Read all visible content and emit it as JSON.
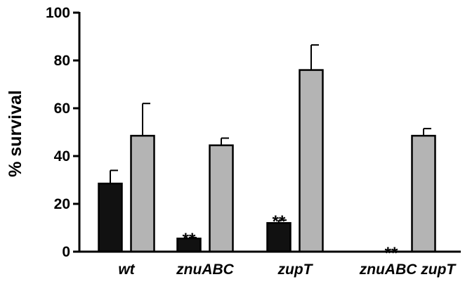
{
  "chart_data": {
    "type": "bar",
    "ylabel": "% survival",
    "ylim": [
      0,
      100
    ],
    "yticks": [
      0,
      20,
      40,
      60,
      80,
      100
    ],
    "categories": [
      "wt",
      "znuABC",
      "zupT",
      "znuABC zupT"
    ],
    "series": [
      {
        "color": "#111111",
        "values": [
          28.5,
          5.5,
          12,
          0
        ],
        "errors": [
          5.5,
          0.4,
          1.2,
          0
        ]
      },
      {
        "color": "#b4b4b4",
        "values": [
          48.5,
          44.5,
          76,
          48.5
        ],
        "errors": [
          13.5,
          3,
          10.5,
          3
        ]
      }
    ],
    "annotations": [
      {
        "category_index": 1,
        "series_index": 0,
        "text": "**"
      },
      {
        "category_index": 2,
        "series_index": 0,
        "text": "**"
      },
      {
        "category_index": 3,
        "series_index": 0,
        "text": "**"
      }
    ],
    "grid": false,
    "legend": false
  }
}
